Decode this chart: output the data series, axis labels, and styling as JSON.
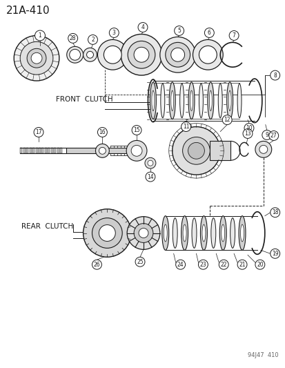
{
  "title": "21A-410",
  "bg_color": "#ffffff",
  "line_color": "#1a1a1a",
  "front_clutch_label": "FRONT  CLUTCH",
  "rear_clutch_label": "REAR  CLUTCH",
  "watermark": "94J47  410",
  "font_size_title": 11,
  "font_size_label": 7.5,
  "font_size_part": 6,
  "font_size_watermark": 6
}
